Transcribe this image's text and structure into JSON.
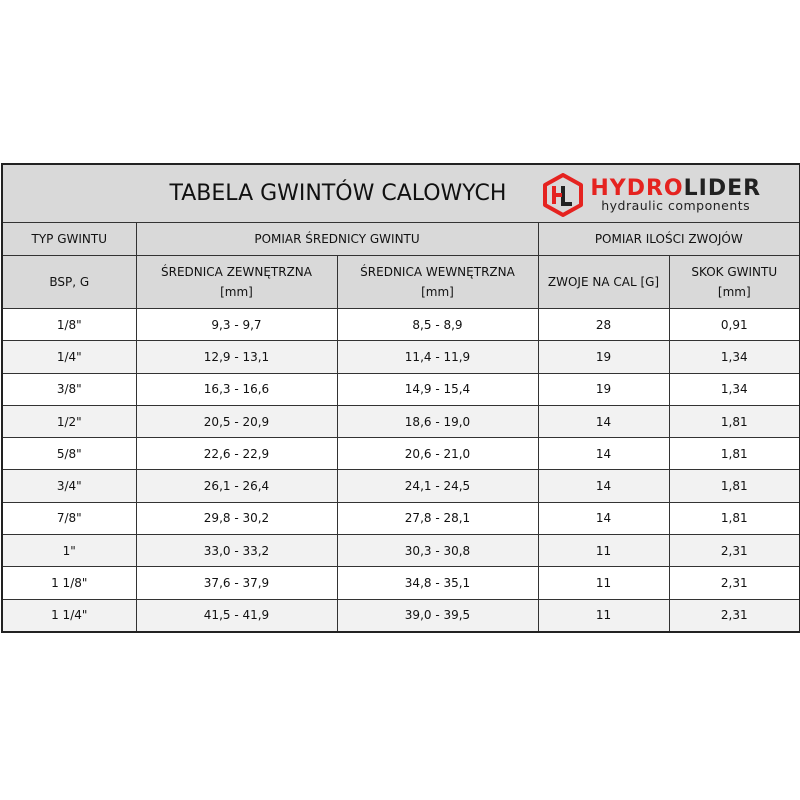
{
  "title": "TABELA GWINTÓW CALOWYCH",
  "logo": {
    "brand_red": "HYDRO",
    "brand_dark": "LIDER",
    "tagline": "hydraulic components",
    "mark": "HL",
    "color": "#e52320"
  },
  "header": {
    "typ": "TYP GWINTU",
    "pomiar_srednicy": "POMIAR ŚREDNICY GWINTU",
    "pomiar_zwojow": "POMIAR ILOŚCI ZWOJÓW",
    "bsp": "BSP, G",
    "zew": "ŚREDNICA ZEWNĘTRZNA",
    "zew_unit": "[mm]",
    "wew": "ŚREDNICA WEWNĘTRZNA",
    "wew_unit": "[mm]",
    "zwoje": "ZWOJE NA CAL [G]",
    "skok": "SKOK GWINTU",
    "skok_unit": "[mm]"
  },
  "rows": [
    [
      "1/8\"",
      "9,3 - 9,7",
      "8,5 - 8,9",
      "28",
      "0,91"
    ],
    [
      "1/4\"",
      "12,9 - 13,1",
      "11,4 - 11,9",
      "19",
      "1,34"
    ],
    [
      "3/8\"",
      "16,3 - 16,6",
      "14,9 - 15,4",
      "19",
      "1,34"
    ],
    [
      "1/2\"",
      "20,5 - 20,9",
      "18,6 - 19,0",
      "14",
      "1,81"
    ],
    [
      "5/8\"",
      "22,6 - 22,9",
      "20,6 - 21,0",
      "14",
      "1,81"
    ],
    [
      "3/4\"",
      "26,1 - 26,4",
      "24,1 - 24,5",
      "14",
      "1,81"
    ],
    [
      "7/8\"",
      "29,8 - 30,2",
      "27,8 - 28,1",
      "14",
      "1,81"
    ],
    [
      "1\"",
      "33,0 - 33,2",
      "30,3 - 30,8",
      "11",
      "2,31"
    ],
    [
      "1 1/8\"",
      "37,6 - 37,9",
      "34,8 - 35,1",
      "11",
      "2,31"
    ],
    [
      "1 1/4\"",
      "41,5 - 41,9",
      "39,0 - 39,5",
      "11",
      "2,31"
    ]
  ]
}
